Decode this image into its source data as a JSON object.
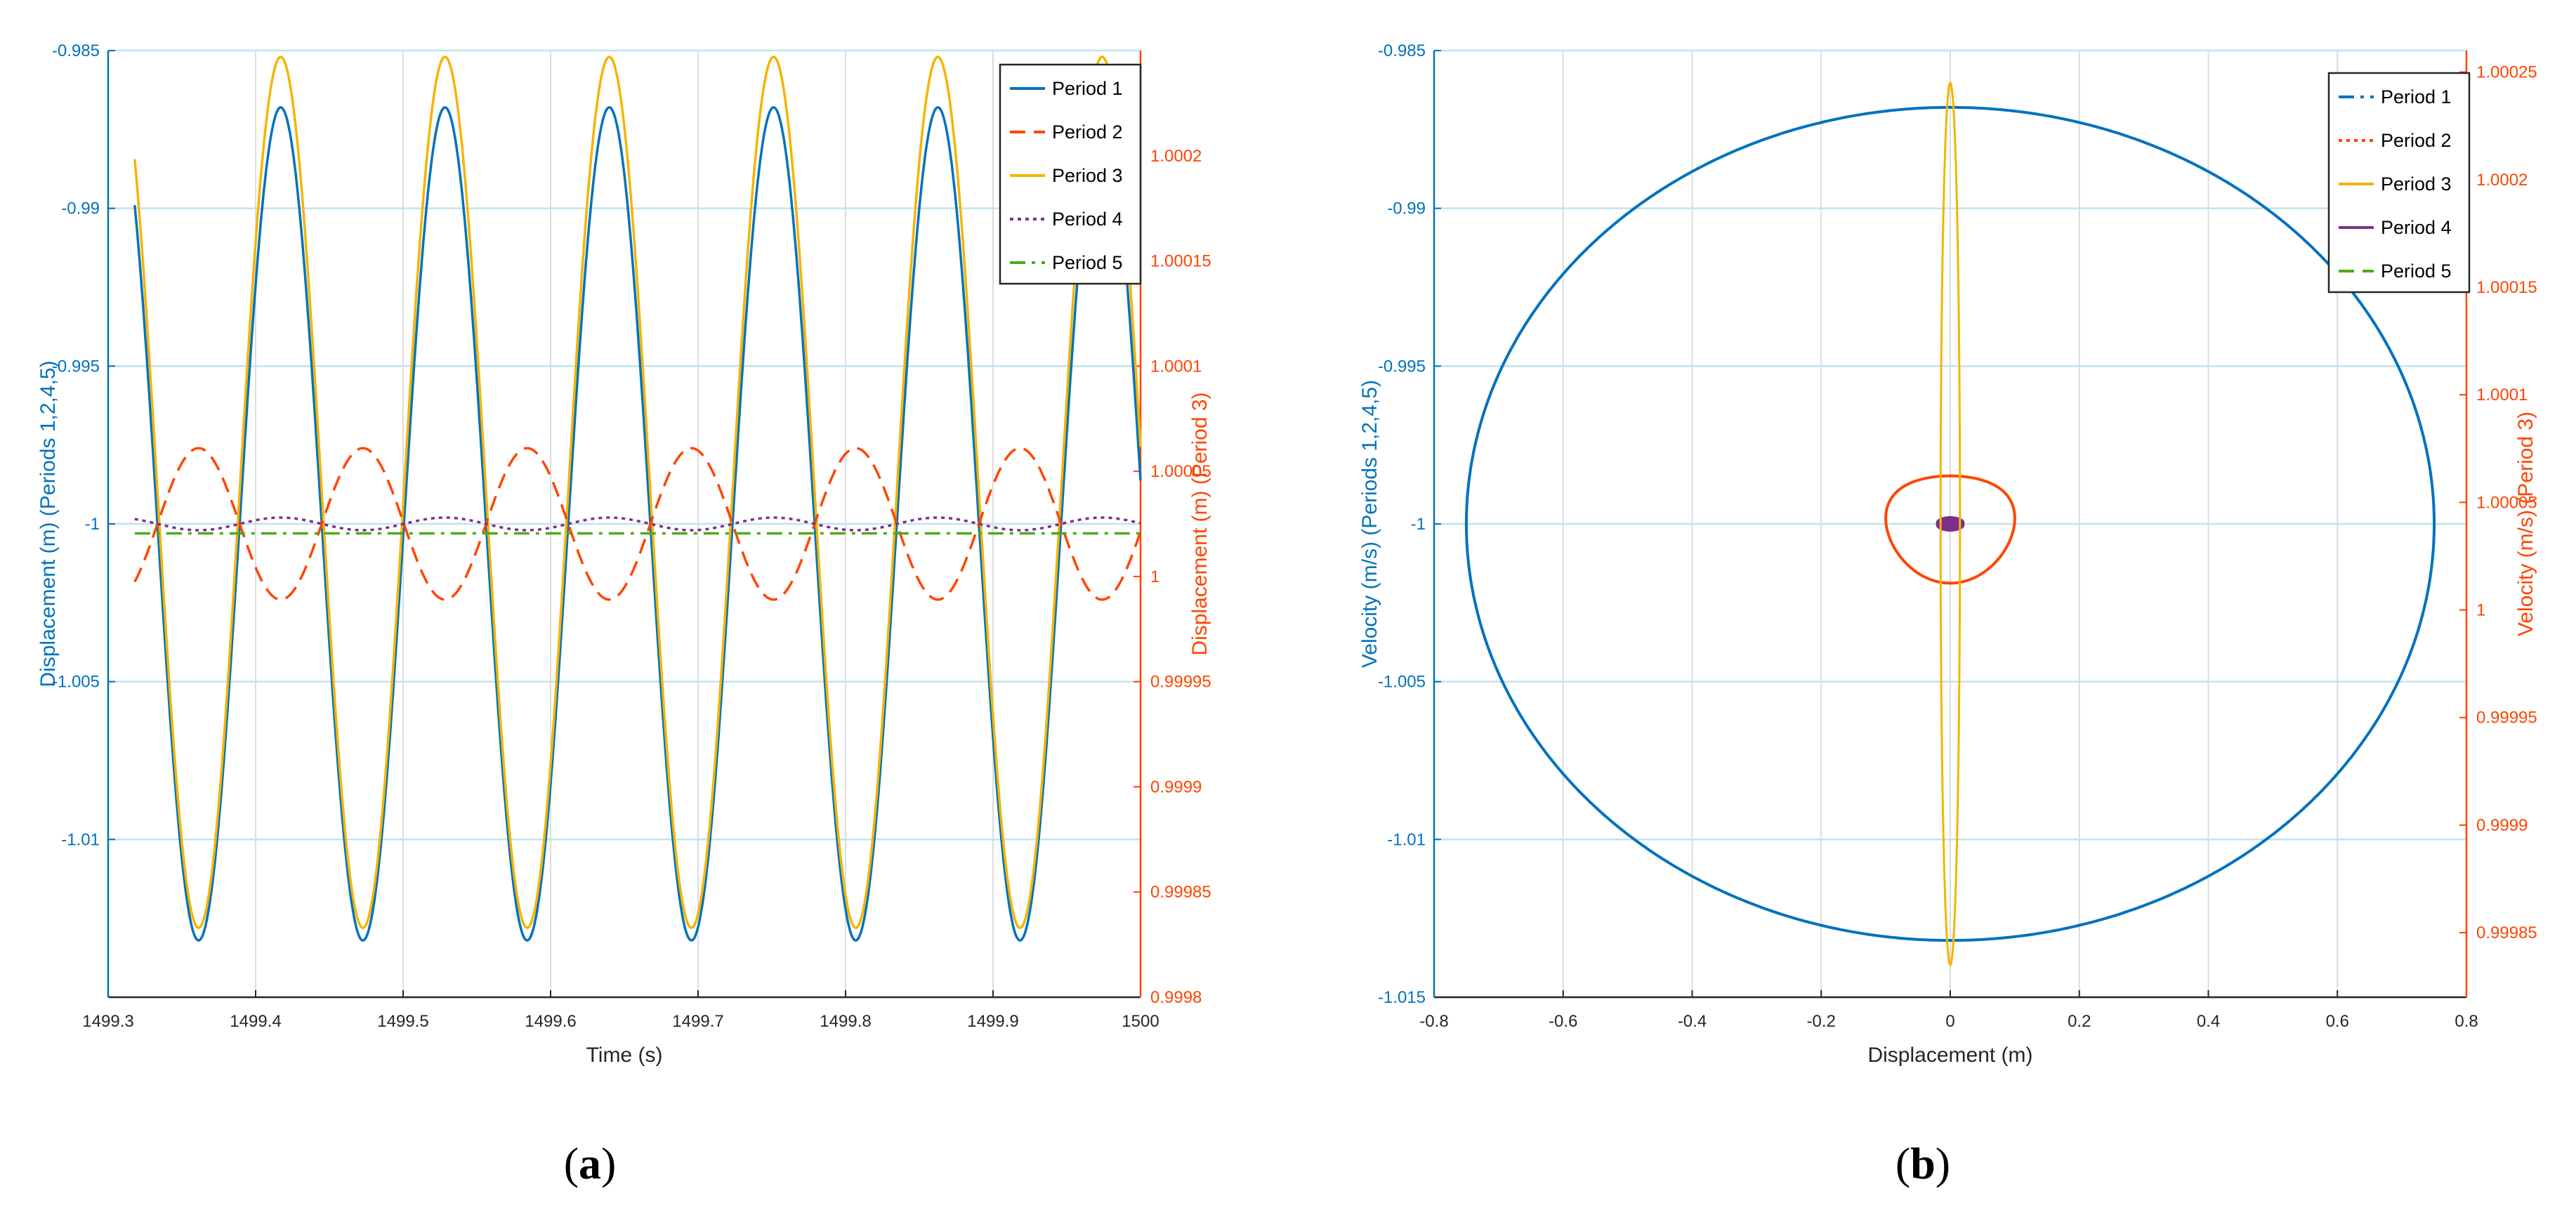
{
  "colors": {
    "left_axis": "#0072BD",
    "right_axis": "#FF4500",
    "period1": "#0072BD",
    "period2": "#FF4500",
    "period3": "#F5B400",
    "period4": "#7E2F8E",
    "period5": "#4DAA1B",
    "grid": "#bfe3f0"
  },
  "captions": [
    {
      "open": "(",
      "letter": "a",
      "close": ")"
    },
    {
      "open": "(",
      "letter": "b",
      "close": ")"
    }
  ],
  "chart_data": [
    {
      "type": "line",
      "panel": "a",
      "xlabel": "Time (s)",
      "ylabel_left": "Displacement (m) (Periods 1,2,4,5)",
      "ylabel_right": "Displacement (m) (Period 3)",
      "xlim": [
        1499.3,
        1500
      ],
      "ylim_left": [
        -1.015,
        -0.985
      ],
      "ylim_right": [
        0.9998,
        1.00025
      ],
      "x_ticks": [
        "1499.3",
        "1499.4",
        "1499.5",
        "1499.6",
        "1499.7",
        "1499.8",
        "1499.9",
        "1500"
      ],
      "y_ticks_left": [
        "-0.985",
        "-0.99",
        "-0.995",
        "-1",
        "-1.005",
        "-1.01"
      ],
      "y_ticks_right": [
        "1.0002",
        "1.00015",
        "1.0001",
        "1.00005",
        "1",
        "0.99995",
        "0.9999",
        "0.99985",
        "0.9998"
      ],
      "grid": true,
      "legend_position": "top-right",
      "signal": {
        "period": 0.1114,
        "phase_ref_time": 1499.417,
        "t_start": 1499.318,
        "t_end": 1500.0
      },
      "series": [
        {
          "name": "Period 1",
          "axis": "left",
          "dash": "solid",
          "mean": -1.0,
          "amplitude": 0.0132
        },
        {
          "name": "Period 2",
          "axis": "left",
          "dash": "dashed",
          "mean": -1.0,
          "amplitude": 0.0024
        },
        {
          "name": "Period 3",
          "axis": "right",
          "dash": "solid",
          "mean": 1.00004,
          "amplitude": 0.000207
        },
        {
          "name": "Period 4",
          "axis": "left",
          "dash": "dotted",
          "mean": -1.0,
          "amplitude": 0.0002
        },
        {
          "name": "Period 5",
          "axis": "left",
          "dash": "dashdot",
          "mean": -1.0003,
          "amplitude": 0.0
        }
      ]
    },
    {
      "type": "line",
      "panel": "b",
      "xlabel": "Displacement (m)",
      "ylabel_left": "Velocity (m/s) (Periods 1,2,4,5)",
      "ylabel_right": "Velocity (m/s) (Period 3)",
      "xlim": [
        -0.8,
        0.8
      ],
      "ylim_left": [
        -1.015,
        -0.985
      ],
      "ylim_right": [
        0.99982,
        1.00026
      ],
      "x_ticks": [
        "-0.8",
        "-0.6",
        "-0.4",
        "-0.2",
        "0",
        "0.2",
        "0.4",
        "0.6",
        "0.8"
      ],
      "y_ticks_left": [
        "-0.985",
        "-0.99",
        "-0.995",
        "-1",
        "-1.005",
        "-1.01",
        "-1.015"
      ],
      "y_ticks_right": [
        "1.00025",
        "1.0002",
        "1.00015",
        "1.0001",
        "1.00005",
        "1",
        "0.99995",
        "0.9999",
        "0.99985"
      ],
      "grid": true,
      "legend_position": "top-right",
      "series": [
        {
          "name": "Period 1",
          "axis": "left",
          "dash": "dashdot",
          "x_center": 0.0,
          "x_radius": 0.75,
          "y_center": -1.0,
          "y_radius": 0.0132
        },
        {
          "name": "Period 2",
          "axis": "left",
          "dash": "dotted",
          "x_center": 0.0,
          "x_radius": 0.1,
          "y_center": -1.0,
          "y_radius": 0.0017
        },
        {
          "name": "Period 3",
          "axis": "right",
          "dash": "solid",
          "x_center": 0.0,
          "x_radius": 0.015,
          "y_center": 1.00004,
          "y_radius": 0.000205
        },
        {
          "name": "Period 4",
          "axis": "left",
          "dash": "solid",
          "x_center": 0.0,
          "x_radius": 0.02,
          "y_center": -1.0,
          "y_radius": 0.0002
        },
        {
          "name": "Period 5",
          "axis": "left",
          "dash": "dashed",
          "x_center": 0.0,
          "x_radius": 0.012,
          "y_center": -1.0,
          "y_radius": 0.00015
        }
      ]
    }
  ]
}
